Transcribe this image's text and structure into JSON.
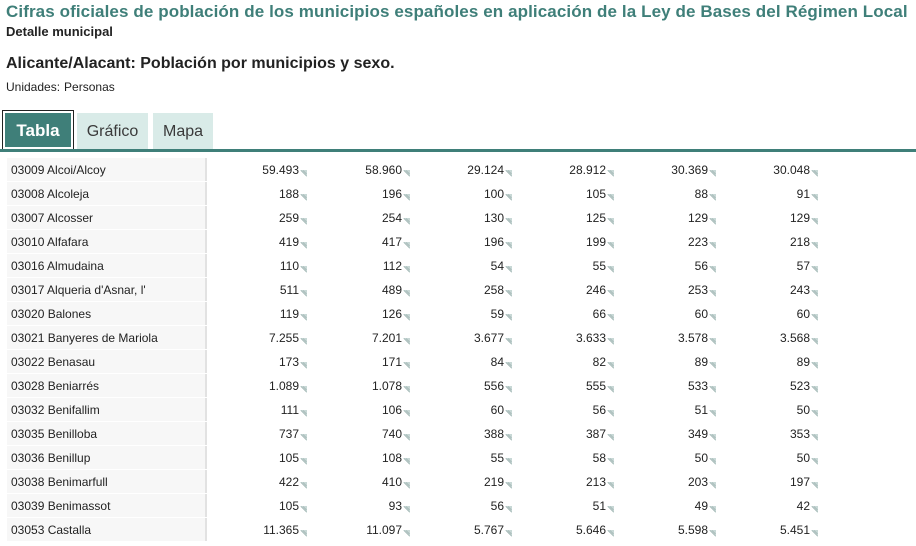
{
  "header": {
    "title": "Cifras oficiales de población de los municipios españoles en aplicación de la Ley de Bases del Régimen Local",
    "subtitle": "Detalle municipal",
    "table_title": "Alicante/Alacant: Población por municipios y sexo.",
    "units_label": "Unidades:",
    "units_value": "Personas"
  },
  "tabs": [
    {
      "label": "Tabla",
      "active": true
    },
    {
      "label": "Gráfico",
      "active": false
    },
    {
      "label": "Mapa",
      "active": false
    }
  ],
  "colors": {
    "accent": "#3f7f79",
    "tab_inactive": "#d9ebe8"
  },
  "note_icon": "note-corner-icon",
  "rows": [
    {
      "name": "03009 Alcoi/Alcoy",
      "values": [
        "59.493",
        "58.960",
        "29.124",
        "28.912",
        "30.369",
        "30.048"
      ]
    },
    {
      "name": "03008 Alcoleja",
      "values": [
        "188",
        "196",
        "100",
        "105",
        "88",
        "91"
      ]
    },
    {
      "name": "03007 Alcosser",
      "values": [
        "259",
        "254",
        "130",
        "125",
        "129",
        "129"
      ]
    },
    {
      "name": "03010 Alfafara",
      "values": [
        "419",
        "417",
        "196",
        "199",
        "223",
        "218"
      ]
    },
    {
      "name": "03016 Almudaina",
      "values": [
        "110",
        "112",
        "54",
        "55",
        "56",
        "57"
      ]
    },
    {
      "name": "03017 Alqueria d'Asnar, l'",
      "values": [
        "511",
        "489",
        "258",
        "246",
        "253",
        "243"
      ]
    },
    {
      "name": "03020 Balones",
      "values": [
        "119",
        "126",
        "59",
        "66",
        "60",
        "60"
      ]
    },
    {
      "name": "03021 Banyeres de Mariola",
      "values": [
        "7.255",
        "7.201",
        "3.677",
        "3.633",
        "3.578",
        "3.568"
      ]
    },
    {
      "name": "03022 Benasau",
      "values": [
        "173",
        "171",
        "84",
        "82",
        "89",
        "89"
      ]
    },
    {
      "name": "03028 Beniarrés",
      "values": [
        "1.089",
        "1.078",
        "556",
        "555",
        "533",
        "523"
      ]
    },
    {
      "name": "03032 Benifallim",
      "values": [
        "111",
        "106",
        "60",
        "56",
        "51",
        "50"
      ]
    },
    {
      "name": "03035 Benilloba",
      "values": [
        "737",
        "740",
        "388",
        "387",
        "349",
        "353"
      ]
    },
    {
      "name": "03036 Benillup",
      "values": [
        "105",
        "108",
        "55",
        "58",
        "50",
        "50"
      ]
    },
    {
      "name": "03038 Benimarfull",
      "values": [
        "422",
        "410",
        "219",
        "213",
        "203",
        "197"
      ]
    },
    {
      "name": "03039 Benimassot",
      "values": [
        "105",
        "93",
        "56",
        "51",
        "49",
        "42"
      ]
    },
    {
      "name": "03053 Castalla",
      "values": [
        "11.365",
        "11.097",
        "5.767",
        "5.646",
        "5.598",
        "5.451"
      ]
    }
  ]
}
